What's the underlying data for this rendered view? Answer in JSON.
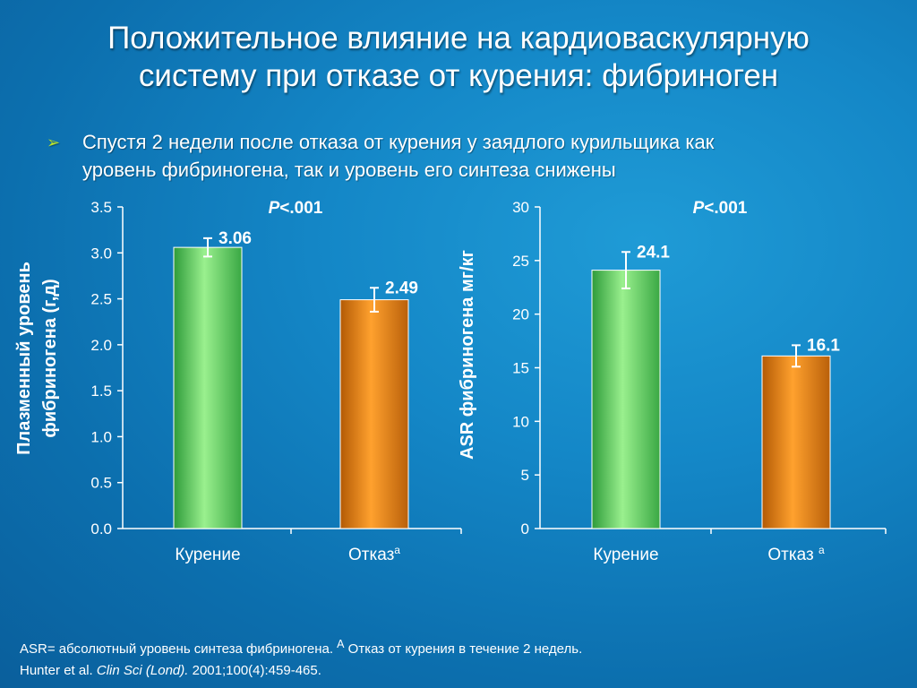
{
  "slide": {
    "title_line1": "Положительное влияние на кардиоваскулярную",
    "title_line2": "систему при отказе от курения: фибриноген",
    "bullet_icon": "arrow-bullet-icon",
    "bullet_text_line1": "Спустя  2 недели после отказа от курения у заядлого курильщика как",
    "bullet_text_line2": "уровень фибриногена, так и уровень его синтеза снижены",
    "footnote_line1": "ASR= абсолютный уровень синтеза фибриногена. ",
    "footnote_sup": "A",
    "footnote_line1_rest": " Отказ от курения в течение 2 недель.",
    "citation_authors": "Hunter et al. ",
    "citation_journal": "Clin Sci (Lond).",
    "citation_rest": " 2001;100(4):459-465."
  },
  "colors": {
    "background": "#1487c7",
    "bar_smoking": "#7ee07a",
    "bar_quit": "#e27a12",
    "bullet": "#b9e22a"
  },
  "chart_data": [
    {
      "type": "bar",
      "title": "",
      "ylabel_line1": "Плазменный уровень",
      "ylabel_line2": "фибриногена (г,д)",
      "xlabel": "",
      "ylim": [
        0,
        3.5
      ],
      "yticks": [
        "0.0",
        "0.5",
        "1.0",
        "1.5",
        "2.0",
        "2.5",
        "3.0",
        "3.5"
      ],
      "annotation_p": "P",
      "annotation_rest": "<.001",
      "categories": [
        {
          "label": "Курение",
          "sup": ""
        },
        {
          "label": "Отказ",
          "sup": "a"
        }
      ],
      "values": [
        3.06,
        2.49
      ],
      "value_labels": [
        "3.06",
        "2.49"
      ],
      "error": [
        0.1,
        0.13
      ],
      "grid": false
    },
    {
      "type": "bar",
      "title": "",
      "ylabel_line1": "ASR фибриногена  мг/кг",
      "ylabel_line2": "",
      "xlabel": "",
      "ylim": [
        0,
        30
      ],
      "yticks": [
        "0",
        "5",
        "10",
        "15",
        "20",
        "25",
        "30"
      ],
      "annotation_p": "P",
      "annotation_rest": "<.001",
      "categories": [
        {
          "label": "Курение",
          "sup": ""
        },
        {
          "label": "Отказ ",
          "sup": "a"
        }
      ],
      "values": [
        24.1,
        16.1
      ],
      "value_labels": [
        "24.1",
        "16.1"
      ],
      "error": [
        1.7,
        1.0
      ],
      "grid": false
    }
  ]
}
